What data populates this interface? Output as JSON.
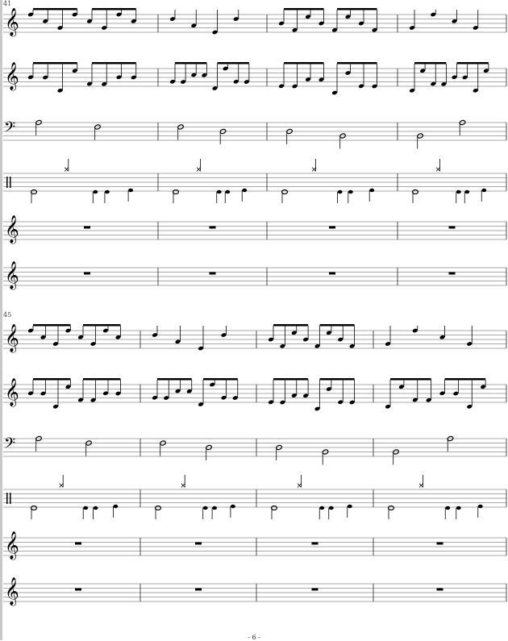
{
  "score": {
    "systems": [
      {
        "first_measure": "41"
      },
      {
        "first_measure": "45"
      }
    ],
    "staves": [
      {
        "clef": "treble"
      },
      {
        "clef": "treble"
      },
      {
        "clef": "bass"
      },
      {
        "clef": "percussion"
      },
      {
        "clef": "treble"
      },
      {
        "clef": "treble"
      }
    ],
    "page_number": "- 6 -"
  },
  "icons": {
    "treble_clef": "𝄞",
    "bass_clef": "𝄢"
  }
}
